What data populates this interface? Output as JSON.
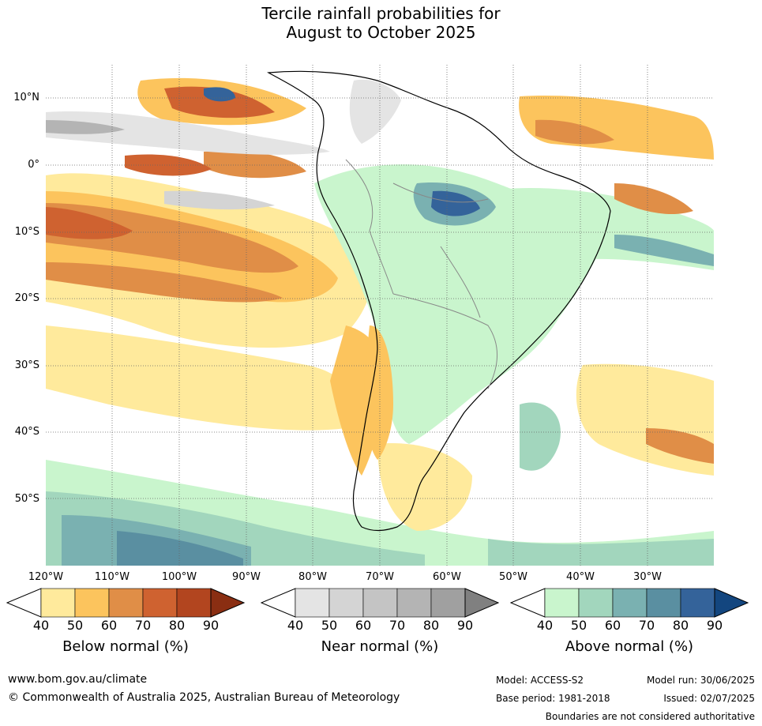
{
  "title": {
    "line1": "Tercile rainfall probabilities for",
    "line2": "August to October 2025"
  },
  "map": {
    "lat_labels": [
      "10°N",
      "0°",
      "10°S",
      "20°S",
      "30°S",
      "40°S",
      "50°S"
    ],
    "lon_labels": [
      "120°W",
      "110°W",
      "100°W",
      "90°W",
      "80°W",
      "70°W",
      "60°W",
      "50°W",
      "40°W",
      "30°W"
    ],
    "gridlines": "dotted",
    "note": "Boundaries are not considered authoritative"
  },
  "colorbars": [
    {
      "name": "Below normal (%)",
      "ticks": [
        "40",
        "50",
        "60",
        "70",
        "80",
        "90"
      ],
      "colors": [
        "#ffffff",
        "#ffea9c",
        "#fcc45d",
        "#e08e47",
        "#cf6230",
        "#b2451f",
        "#8a2e12"
      ]
    },
    {
      "name": "Near normal (%)",
      "ticks": [
        "40",
        "50",
        "60",
        "70",
        "80",
        "90"
      ],
      "colors": [
        "#ffffff",
        "#e4e4e4",
        "#d4d4d4",
        "#c4c4c4",
        "#b4b4b4",
        "#a0a0a0",
        "#808080"
      ]
    },
    {
      "name": "Above normal (%)",
      "ticks": [
        "40",
        "50",
        "60",
        "70",
        "80",
        "90"
      ],
      "colors": [
        "#ffffff",
        "#c9f5cd",
        "#a2d6bd",
        "#7ab1b1",
        "#5a8fa1",
        "#34639a",
        "#13467f"
      ]
    }
  ],
  "footer": {
    "url": "www.bom.gov.au/climate",
    "copyright": "© Commonwealth of Australia 2025, Australian Bureau of Meteorology",
    "model": "Model: ACCESS-S2",
    "model_run": "Model run: 30/06/2025",
    "base_period": "Base period: 1981-2018",
    "issued": "Issued: 02/07/2025",
    "boundaries": "Boundaries are not considered authoritative"
  }
}
